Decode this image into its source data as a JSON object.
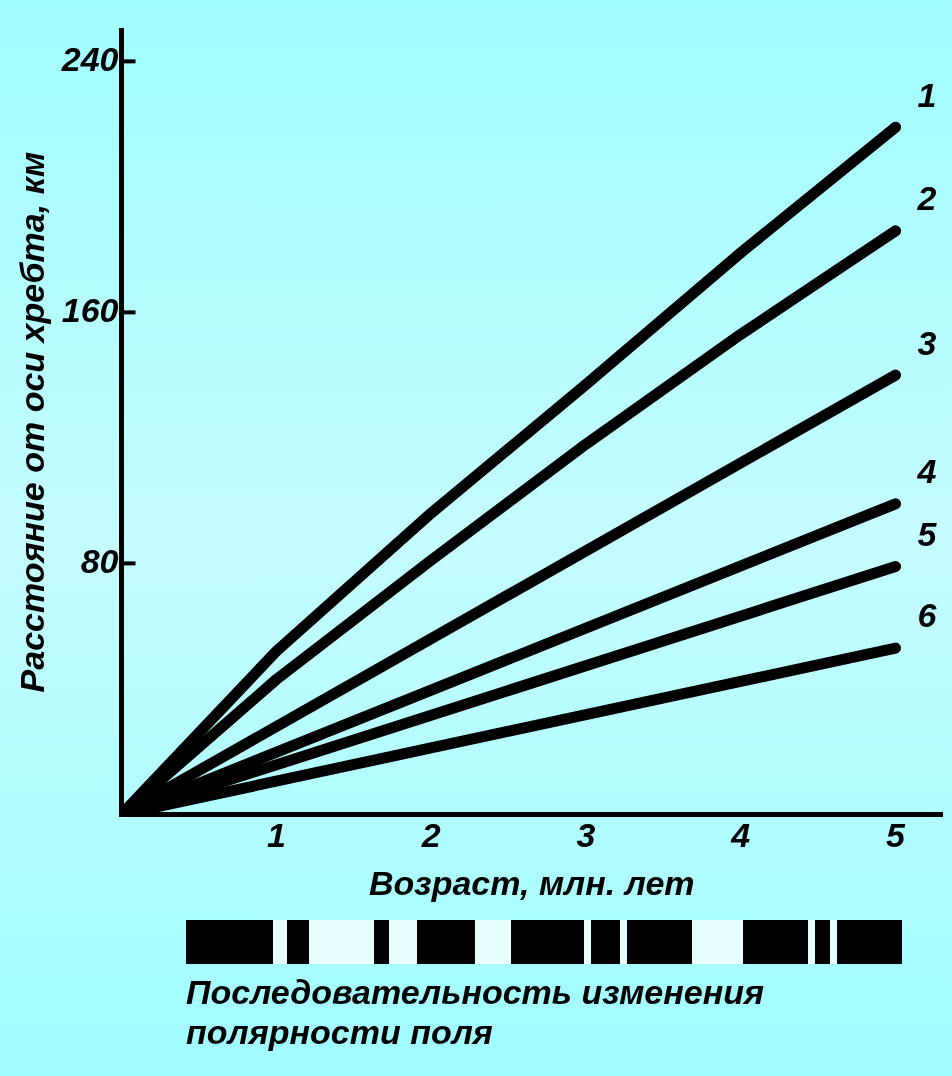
{
  "chart_data": {
    "type": "line",
    "xlabel": "Возраст, млн. лет",
    "ylabel": "Расстояние от оси хребта, км",
    "xlim": [
      0,
      5.3
    ],
    "xticks": [
      1,
      2,
      3,
      4,
      5
    ],
    "ylim": [
      0,
      250
    ],
    "yticks": [
      80,
      160,
      240
    ],
    "grid": false,
    "legend": false,
    "marker": "none",
    "line_style": "solid",
    "series": [
      {
        "name": "1",
        "color": "#000000",
        "x": [
          0,
          1,
          2,
          3,
          4,
          5
        ],
        "values": [
          0,
          52,
          96,
          137,
          179,
          219
        ]
      },
      {
        "name": "2",
        "color": "#000000",
        "x": [
          0,
          1,
          2,
          3,
          4,
          5
        ],
        "values": [
          0,
          43,
          81,
          118,
          153,
          186
        ]
      },
      {
        "name": "3",
        "color": "#000000",
        "x": [
          0,
          5
        ],
        "values": [
          0,
          140
        ]
      },
      {
        "name": "4",
        "color": "#000000",
        "x": [
          0,
          5
        ],
        "values": [
          0,
          99
        ]
      },
      {
        "name": "5",
        "color": "#000000",
        "x": [
          0,
          5
        ],
        "values": [
          0,
          79
        ]
      },
      {
        "name": "6",
        "color": "#000000",
        "x": [
          0,
          5
        ],
        "values": [
          0,
          53
        ]
      }
    ],
    "annotations": [
      "Последовательность изменения полярности поля"
    ]
  }
}
